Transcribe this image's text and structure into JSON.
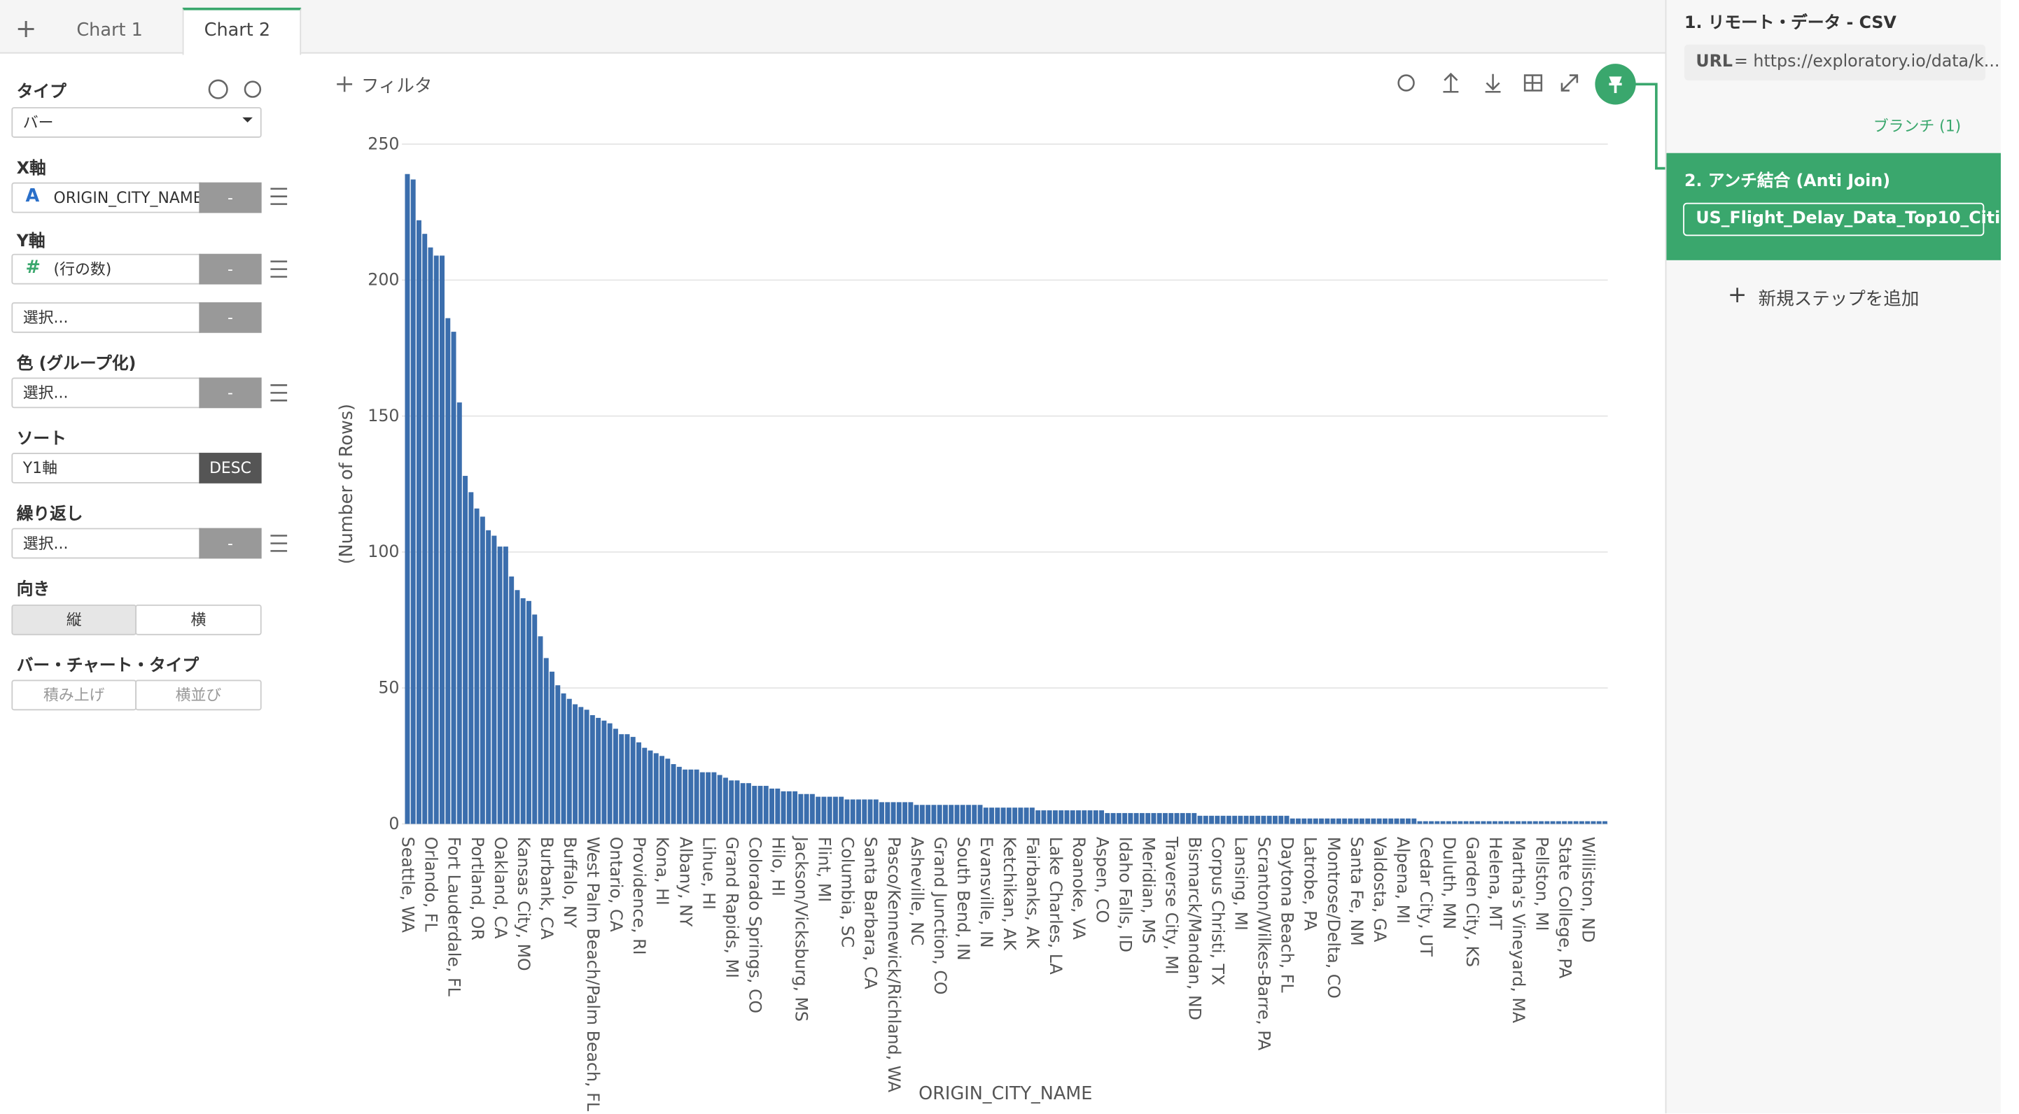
{
  "tabs": [
    "Chart 1",
    "Chart 2"
  ],
  "panel": {
    "type_label": "タイプ",
    "type_value": "バー",
    "x_label": "X軸",
    "x_type_icon": "A",
    "x_value": "ORIGIN_CITY_NAME",
    "y_label": "Y軸",
    "y_type_icon": "#",
    "y_value": "(行の数)",
    "y2_value": "選択...",
    "color_label": "色 (グループ化)",
    "color_value": "選択...",
    "sort_label": "ソート",
    "sort_value": "Y1軸",
    "sort_order": "DESC",
    "repeat_label": "繰り返し",
    "repeat_value": "選択...",
    "dash": "-",
    "orientation_label": "向き",
    "orientation_options": [
      "縦",
      "横"
    ],
    "bar_type_label": "バー・チャート・タイプ",
    "bar_type_options": [
      "積み上げ",
      "横並び"
    ]
  },
  "filter": "フィルタ",
  "steps": {
    "step1": "1. リモート・データ - CSV",
    "url_key": "URL",
    "url_value": "= https://exploratory.io/data/k...",
    "branch": "ブランチ (1)",
    "step2": "2. アンチ結合 (Anti Join)",
    "step2_target": "US_Flight_Delay_Data_Top10_Citi...",
    "add_step": "新規ステップを追加"
  },
  "chart_data": {
    "type": "bar",
    "color": "#3b6ead",
    "x_label": "ORIGIN_CITY_NAME",
    "y_label": "(Number of Rows)",
    "ylim": [
      0,
      250
    ],
    "yticks": [
      0,
      50,
      100,
      150,
      200,
      250
    ],
    "grid": true,
    "categories": [
      "Seattle, WA",
      null,
      null,
      null,
      "Orlando, FL",
      null,
      null,
      null,
      "Fort Lauderdale, FL",
      null,
      null,
      null,
      "Portland, OR",
      null,
      null,
      null,
      "Oakland, CA",
      null,
      null,
      null,
      "Kansas City, MO",
      null,
      null,
      null,
      "Burbank, CA",
      null,
      null,
      null,
      "Buffalo, NY",
      null,
      null,
      null,
      "West Palm Beach/Palm Beach, FL",
      null,
      null,
      null,
      "Ontario, CA",
      null,
      null,
      null,
      "Providence, RI",
      null,
      null,
      null,
      "Kona, HI",
      null,
      null,
      null,
      "Albany, NY",
      null,
      null,
      null,
      "Lihue, HI",
      null,
      null,
      null,
      "Grand Rapids, MI",
      null,
      null,
      null,
      "Colorado Springs, CO",
      null,
      null,
      null,
      "Hilo, HI",
      null,
      null,
      null,
      "Jackson/Vicksburg, MS",
      null,
      null,
      null,
      "Flint, MI",
      null,
      null,
      null,
      "Columbia, SC",
      null,
      null,
      null,
      "Santa Barbara, CA",
      null,
      null,
      null,
      "Pasco/Kennewick/Richland, WA",
      null,
      null,
      null,
      "Asheville, NC",
      null,
      null,
      null,
      "Grand Junction, CO",
      null,
      null,
      null,
      "South Bend, IN",
      null,
      null,
      null,
      "Evansville, IN",
      null,
      null,
      null,
      "Ketchikan, AK",
      null,
      null,
      null,
      "Fairbanks, AK",
      null,
      null,
      null,
      "Lake Charles, LA",
      null,
      null,
      null,
      "Roanoke, VA",
      null,
      null,
      null,
      "Aspen, CO",
      null,
      null,
      null,
      "Idaho Falls, ID",
      null,
      null,
      null,
      "Meridian, MS",
      null,
      null,
      null,
      "Traverse City, MI",
      null,
      null,
      null,
      "Bismarck/Mandan, ND",
      null,
      null,
      null,
      "Corpus Christi, TX",
      null,
      null,
      null,
      "Lansing, MI",
      null,
      null,
      null,
      "Scranton/Wilkes-Barre, PA",
      null,
      null,
      null,
      "Daytona Beach, FL",
      null,
      null,
      null,
      "Latrobe, PA",
      null,
      null,
      null,
      "Montrose/Delta, CO",
      null,
      null,
      null,
      "Santa Fe, NM",
      null,
      null,
      null,
      "Valdosta, GA",
      null,
      null,
      null,
      "Alpena, MI",
      null,
      null,
      null,
      "Cedar City, UT",
      null,
      null,
      null,
      "Duluth, MN",
      null,
      null,
      null,
      "Garden City, KS",
      null,
      null,
      null,
      "Helena, MT",
      null,
      null,
      null,
      "Martha's Vineyard, MA",
      null,
      null,
      null,
      "Pellston, MI",
      null,
      null,
      null,
      "State College, PA",
      null,
      null,
      null,
      "Williston, ND",
      null,
      null,
      null
    ],
    "values": [
      239,
      237,
      222,
      217,
      212,
      209,
      209,
      186,
      181,
      155,
      128,
      122,
      116,
      113,
      108,
      106,
      102,
      102,
      91,
      86,
      83,
      82,
      77,
      69,
      61,
      56,
      51,
      48,
      46,
      44,
      43,
      42,
      40,
      39,
      38,
      37,
      35,
      33,
      33,
      32,
      30,
      28,
      27,
      26,
      25,
      24,
      22,
      21,
      20,
      20,
      20,
      19,
      19,
      19,
      18,
      17,
      16,
      16,
      15,
      15,
      14,
      14,
      14,
      13,
      13,
      12,
      12,
      12,
      11,
      11,
      11,
      10,
      10,
      10,
      10,
      10,
      9,
      9,
      9,
      9,
      9,
      9,
      8,
      8,
      8,
      8,
      8,
      8,
      7,
      7,
      7,
      7,
      7,
      7,
      7,
      7,
      7,
      7,
      7,
      7,
      6,
      6,
      6,
      6,
      6,
      6,
      6,
      6,
      6,
      5,
      5,
      5,
      5,
      5,
      5,
      5,
      5,
      5,
      5,
      5,
      5,
      4,
      4,
      4,
      4,
      4,
      4,
      4,
      4,
      4,
      4,
      4,
      4,
      4,
      4,
      4,
      4,
      3,
      3,
      3,
      3,
      3,
      3,
      3,
      3,
      3,
      3,
      3,
      3,
      3,
      3,
      3,
      3,
      2,
      2,
      2,
      2,
      2,
      2,
      2,
      2,
      2,
      2,
      2,
      2,
      2,
      2,
      2,
      2,
      2,
      2,
      2,
      2,
      2,
      2,
      1,
      1,
      1,
      1,
      1,
      1,
      1,
      1,
      1,
      1,
      1,
      1,
      1,
      1,
      1,
      1,
      1,
      1,
      1,
      1,
      1,
      1,
      1,
      1,
      1,
      1,
      1,
      1,
      1,
      1,
      1,
      1,
      1
    ]
  }
}
